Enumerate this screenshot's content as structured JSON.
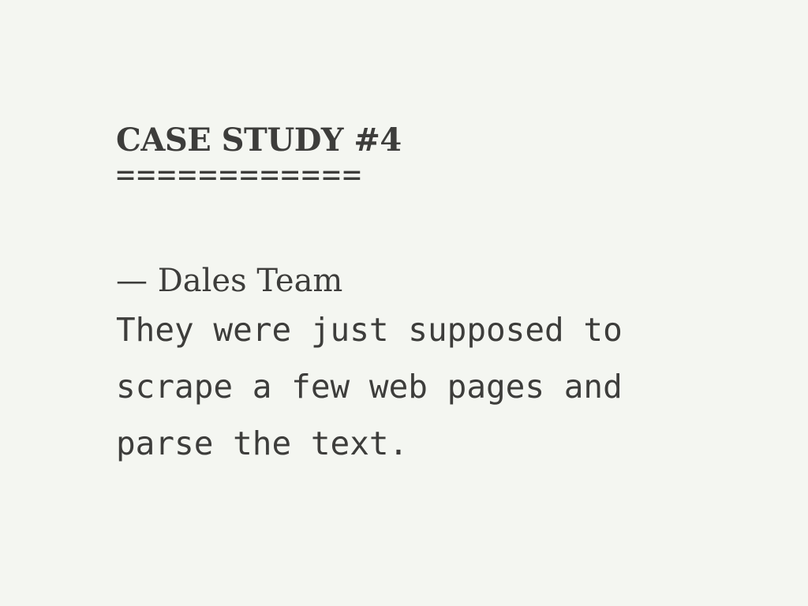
{
  "document": {
    "title": "CASE STUDY #4",
    "title_underline": "============",
    "author": "— Dales Team",
    "body": "They were just supposed to scrape a few web pages and parse the text."
  },
  "colors": {
    "background": "#f4f6f1",
    "text": "#3d3d3b"
  }
}
